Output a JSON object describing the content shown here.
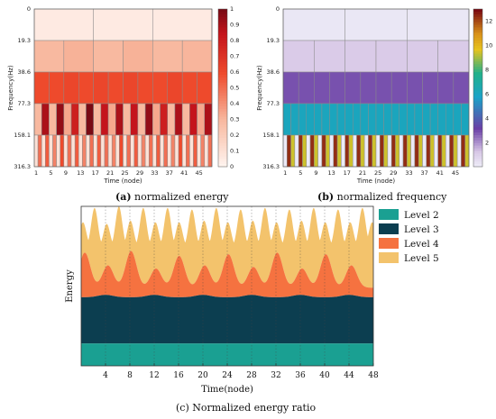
{
  "captions": {
    "a_letter": "(a)",
    "a_text": " normalized energy",
    "b_letter": "(b)",
    "b_text": " normalized frequency",
    "c_text": "(c) Normalized energy ratio"
  },
  "colors": {
    "level2": "#1aa092",
    "level3": "#0c3e50",
    "level4": "#f57240",
    "level5": "#f3c36c"
  },
  "chart_data": [
    {
      "type": "heatmap",
      "id": "a",
      "xlabel": "Time (node)",
      "ylabel": "Frequency(Hz)",
      "y_tick_labels": [
        "0",
        "19.3",
        "38.6",
        "77.3",
        "158.1",
        "316.3"
      ],
      "x_tick_labels": [
        "1",
        "5",
        "9",
        "13",
        "17",
        "21",
        "25",
        "29",
        "33",
        "37",
        "41",
        "45"
      ],
      "colorbar": {
        "min": 0,
        "max": 1,
        "ticks": [
          "0",
          "0.1",
          "0.2",
          "0.3",
          "0.4",
          "0.5",
          "0.6",
          "0.7",
          "0.8",
          "0.9",
          "1"
        ],
        "colormap": "white-to-darkred"
      },
      "bands": [
        {
          "rows": "0-19.3",
          "cells_per_band": 3,
          "values": [
            0.06,
            0.06,
            0.06
          ]
        },
        {
          "rows": "19.3-38.6",
          "cells_per_band": 6,
          "values": [
            0.3,
            0.32,
            0.3,
            0.32,
            0.3,
            0.31
          ]
        },
        {
          "rows": "38.6-77.3",
          "cells_per_band": 12,
          "values": [
            0.6,
            0.6,
            0.62,
            0.6,
            0.62,
            0.6,
            0.62,
            0.6,
            0.6,
            0.62,
            0.6,
            0.6
          ]
        },
        {
          "rows": "77.3-158.1",
          "cells_per_band": 24,
          "values": [
            0.3,
            0.9,
            0.3,
            0.95,
            0.35,
            0.8,
            0.3,
            1.0,
            0.3,
            0.85,
            0.35,
            0.9,
            0.3,
            0.85,
            0.3,
            0.95,
            0.35,
            0.8,
            0.3,
            0.9,
            0.3,
            0.85,
            0.35,
            0.9
          ]
        },
        {
          "rows": "158.1-316.3",
          "cells_per_band": 48,
          "values": [
            0.1,
            0.5,
            0.1,
            0.55,
            0.1,
            0.45,
            0.1,
            0.6,
            0.1,
            0.5,
            0.1,
            0.55,
            0.1,
            0.45,
            0.1,
            0.5,
            0.1,
            0.55,
            0.1,
            0.5,
            0.1,
            0.45,
            0.1,
            0.6,
            0.1,
            0.5,
            0.1,
            0.55,
            0.1,
            0.45,
            0.1,
            0.5,
            0.1,
            0.55,
            0.1,
            0.5,
            0.1,
            0.45,
            0.1,
            0.6,
            0.1,
            0.5,
            0.1,
            0.55,
            0.1,
            0.45,
            0.1,
            0.5
          ]
        }
      ]
    },
    {
      "type": "heatmap",
      "id": "b",
      "xlabel": "Time (node)",
      "ylabel": "Frequency(Hz)",
      "y_tick_labels": [
        "0",
        "19.3",
        "38.6",
        "77.3",
        "158.1",
        "316.3"
      ],
      "x_tick_labels": [
        "1",
        "5",
        "9",
        "13",
        "17",
        "21",
        "25",
        "29",
        "33",
        "37",
        "41",
        "45"
      ],
      "colorbar": {
        "min": 0,
        "max": 13,
        "ticks": [
          "2",
          "4",
          "6",
          "8",
          "10",
          "12"
        ],
        "colormap": "parula-like"
      },
      "bands": [
        {
          "rows": "0-19.3",
          "cells_per_band": 3,
          "values": [
            0.3,
            0.3,
            0.3
          ]
        },
        {
          "rows": "19.3-38.6",
          "cells_per_band": 6,
          "values": [
            1.2,
            1.2,
            1.2,
            1.2,
            1.2,
            1.2
          ]
        },
        {
          "rows": "38.6-77.3",
          "cells_per_band": 12,
          "values": [
            3.0,
            3.0,
            3.0,
            3.0,
            3.0,
            3.0,
            3.0,
            3.0,
            3.0,
            3.0,
            3.0,
            3.0
          ]
        },
        {
          "rows": "77.3-158.1",
          "cells_per_band": 24,
          "values": [
            6.2,
            6.2,
            6.2,
            6.2,
            6.2,
            6.2,
            6.2,
            6.2,
            6.2,
            6.2,
            6.2,
            6.2,
            6.2,
            6.2,
            6.2,
            6.2,
            6.2,
            6.2,
            6.2,
            6.2,
            6.2,
            6.2,
            6.2,
            6.2
          ]
        },
        {
          "rows": "158.1-316.3",
          "cells_per_band": 48,
          "values": [
            0.2,
            12.5,
            9.5,
            0.2,
            12.5,
            9.5,
            0.2,
            12.5,
            9.5,
            0.2,
            12.5,
            9.5,
            0.2,
            12.5,
            9.5,
            0.2,
            12.5,
            9.5,
            0.2,
            12.5,
            9.5,
            0.2,
            12.5,
            9.5,
            0.2,
            12.5,
            9.5,
            0.2,
            12.5,
            9.5,
            0.2,
            12.5,
            9.5,
            0.2,
            12.5,
            9.5,
            0.2,
            12.5,
            9.5,
            0.2,
            12.5,
            9.5,
            0.2,
            12.5,
            9.5,
            0.2,
            12.5,
            9.5
          ]
        }
      ]
    },
    {
      "type": "area",
      "id": "c",
      "xlabel": "Time(node)",
      "ylabel": "Energy",
      "xlim": [
        0,
        48
      ],
      "ylim": [
        0,
        1
      ],
      "x_ticks": [
        4,
        8,
        12,
        16,
        20,
        24,
        28,
        32,
        36,
        40,
        44,
        48
      ],
      "legend": [
        "Level 2",
        "Level 3",
        "Level 4",
        "Level 5"
      ],
      "legend_position": "right",
      "stack": {
        "level2_top": 0.14,
        "level3_top": {
          "base": 0.43,
          "bump": 0.015,
          "bump_centers": [
            4,
            12,
            20,
            28,
            36,
            44
          ]
        },
        "level4_top": {
          "base": 0.49,
          "peak_add": [
            0.22,
            0.14,
            0.23,
            0.12,
            0.2,
            0.14,
            0.21,
            0.13,
            0.22,
            0.12,
            0.21,
            0.14
          ],
          "peak_centers": [
            0.6,
            4.4,
            8.2,
            12.3,
            16.1,
            20.3,
            24.2,
            28.3,
            32.2,
            36.3,
            40.2,
            44.4
          ]
        },
        "level5_top": {
          "base": 0.74,
          "peaks": [
            0.9,
            0.99,
            0.89,
            1.0,
            0.91,
            0.99,
            0.9,
            0.99,
            0.9,
            0.98,
            0.91,
            0.99,
            0.9,
            0.98,
            0.91,
            0.99,
            0.9,
            0.98,
            0.91,
            0.99,
            0.9,
            0.98,
            0.9,
            0.99,
            0.9
          ],
          "peak_centers": [
            0.3,
            2.2,
            4.2,
            6.2,
            8.1,
            10.2,
            12.2,
            14.2,
            16.1,
            18.2,
            20.2,
            22.2,
            24.1,
            26.2,
            28.2,
            30.2,
            32.1,
            34.2,
            36.2,
            38.2,
            40.1,
            42.2,
            44.2,
            46.2,
            47.8
          ]
        }
      }
    }
  ]
}
